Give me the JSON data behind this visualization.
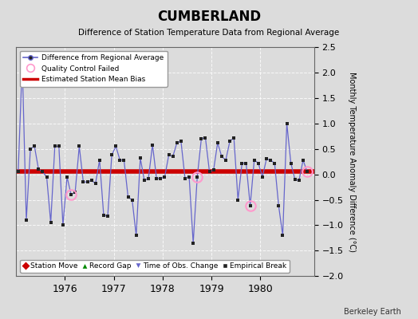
{
  "title": "CUMBERLAND",
  "subtitle": "Difference of Station Temperature Data from Regional Average",
  "ylabel": "Monthly Temperature Anomaly Difference (°C)",
  "credit": "Berkeley Earth",
  "ylim": [
    -2.0,
    2.5
  ],
  "yticks": [
    -2.0,
    -1.5,
    -1.0,
    -0.5,
    0.0,
    0.5,
    1.0,
    1.5,
    2.0,
    2.5
  ],
  "bias": 0.05,
  "background_color": "#dcdcdc",
  "plot_bg_color": "#dcdcdc",
  "months": [
    1975.042,
    1975.125,
    1975.208,
    1975.292,
    1975.375,
    1975.458,
    1975.542,
    1975.625,
    1975.708,
    1975.792,
    1975.875,
    1975.958,
    1976.042,
    1976.125,
    1976.208,
    1976.292,
    1976.375,
    1976.458,
    1976.542,
    1976.625,
    1976.708,
    1976.792,
    1976.875,
    1976.958,
    1977.042,
    1977.125,
    1977.208,
    1977.292,
    1977.375,
    1977.458,
    1977.542,
    1977.625,
    1977.708,
    1977.792,
    1977.875,
    1977.958,
    1978.042,
    1978.125,
    1978.208,
    1978.292,
    1978.375,
    1978.458,
    1978.542,
    1978.625,
    1978.708,
    1978.792,
    1978.875,
    1978.958,
    1979.042,
    1979.125,
    1979.208,
    1979.292,
    1979.375,
    1979.458,
    1979.542,
    1979.625,
    1979.708,
    1979.792,
    1979.875,
    1979.958,
    1980.042,
    1980.125,
    1980.208,
    1980.292,
    1980.375,
    1980.458,
    1980.542,
    1980.625,
    1980.708,
    1980.792,
    1980.875,
    1980.958
  ],
  "values": [
    0.05,
    2.2,
    -0.9,
    0.5,
    0.55,
    0.1,
    0.05,
    -0.05,
    -0.95,
    0.55,
    0.55,
    -1.0,
    -0.05,
    -0.4,
    -0.35,
    0.55,
    -0.15,
    -0.15,
    -0.12,
    -0.18,
    0.28,
    -0.8,
    -0.82,
    0.38,
    0.55,
    0.28,
    0.28,
    -0.45,
    -0.5,
    -1.2,
    0.32,
    -0.12,
    -0.08,
    0.58,
    -0.08,
    -0.08,
    -0.05,
    0.38,
    0.35,
    0.62,
    0.65,
    -0.08,
    -0.05,
    -1.35,
    -0.05,
    0.7,
    0.72,
    0.05,
    0.08,
    0.62,
    0.35,
    0.28,
    0.65,
    0.72,
    -0.5,
    0.22,
    0.22,
    -0.62,
    0.28,
    0.22,
    -0.05,
    0.3,
    0.28,
    0.22,
    -0.62,
    -1.2,
    1.0,
    0.22,
    -0.1,
    -0.12,
    0.28,
    0.05
  ],
  "qc_failed_indices": [
    13,
    44,
    57,
    71
  ],
  "line_color": "#6666cc",
  "marker_color": "#222222",
  "bias_color": "#cc0000",
  "qc_color": "#ff99cc",
  "xticks": [
    1976,
    1977,
    1978,
    1979,
    1980
  ],
  "xlim": [
    1975.0,
    1981.1
  ]
}
